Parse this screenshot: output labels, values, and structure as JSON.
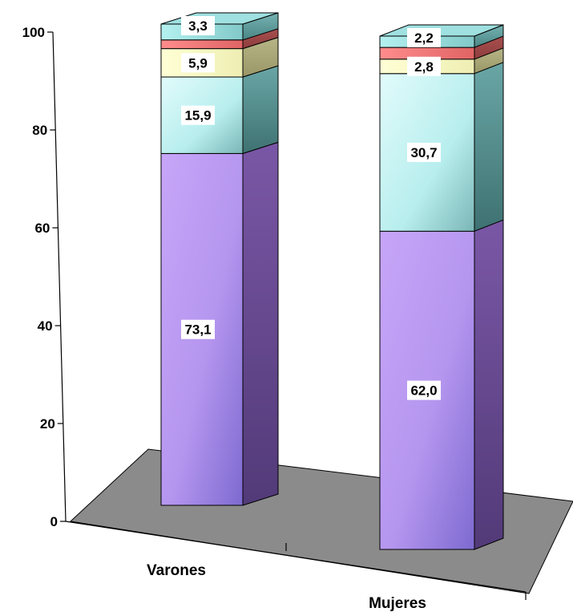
{
  "chart_data": {
    "type": "bar",
    "stacked": true,
    "three_d": true,
    "categories": [
      "Varones",
      "Mujeres"
    ],
    "ylim": [
      0,
      100
    ],
    "yticks": [
      "0",
      "20",
      "40",
      "60",
      "80",
      "100"
    ],
    "grid": true,
    "legend": "none",
    "series": [
      {
        "values": [
          73.1,
          62.0
        ],
        "labels": [
          "73,1",
          "62,0"
        ],
        "color": "#c89af5"
      },
      {
        "values": [
          15.9,
          30.7
        ],
        "labels": [
          "15,9",
          "30,7"
        ],
        "color": "#bff4f4"
      },
      {
        "values": [
          5.9,
          2.8
        ],
        "labels": [
          "5,9",
          "2,8"
        ],
        "color": "#ffffcc"
      },
      {
        "values": [
          1.8,
          2.3
        ],
        "labels": [
          "",
          ""
        ],
        "color": "#ff7b7b"
      },
      {
        "values": [
          3.3,
          2.2
        ],
        "labels": [
          "3,3",
          "2,2"
        ],
        "color": "#a6e9e9"
      }
    ]
  },
  "colors": {
    "floor": "#8b8b8b",
    "grid": "#ffffff",
    "axis": "#000000"
  }
}
